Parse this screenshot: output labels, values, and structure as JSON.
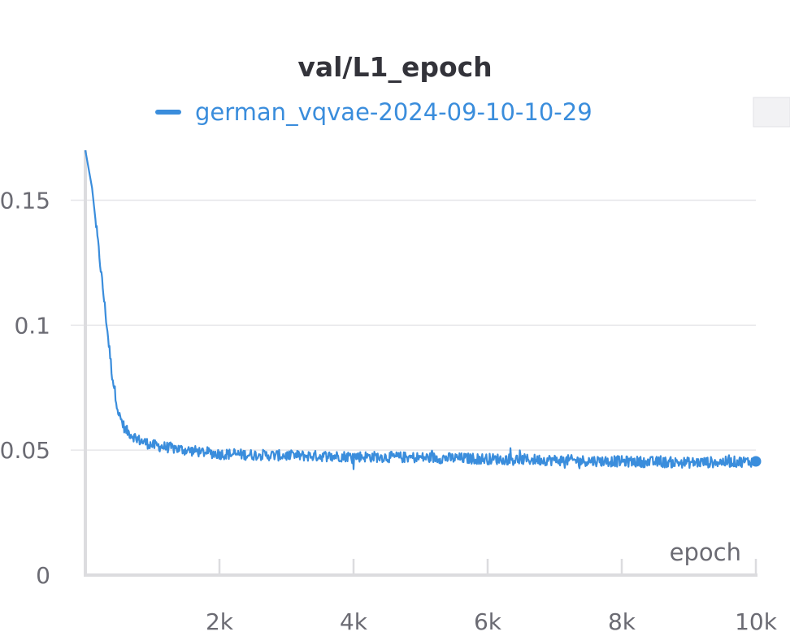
{
  "chart_data": {
    "type": "line",
    "title": "val/L1_epoch",
    "xlabel": "epoch",
    "ylabel": "",
    "xlim": [
      0,
      10000
    ],
    "ylim": [
      0,
      0.17
    ],
    "x_ticks": [
      {
        "value": 2000,
        "label": "2k"
      },
      {
        "value": 4000,
        "label": "4k"
      },
      {
        "value": 6000,
        "label": "6k"
      },
      {
        "value": 8000,
        "label": "8k"
      },
      {
        "value": 10000,
        "label": "10k"
      }
    ],
    "y_ticks": [
      {
        "value": 0,
        "label": "0"
      },
      {
        "value": 0.05,
        "label": "0.05"
      },
      {
        "value": 0.1,
        "label": "0.1"
      },
      {
        "value": 0.15,
        "label": "0.15"
      }
    ],
    "grid": "horizontal",
    "legend_position": "top-center",
    "series": [
      {
        "name": "german_vqvae-2024-09-10-10-29",
        "color": "#3a8ddc",
        "noise_amplitude": 0.0022,
        "values": [
          [
            0,
            0.17
          ],
          [
            100,
            0.155
          ],
          [
            200,
            0.13
          ],
          [
            300,
            0.105
          ],
          [
            400,
            0.08
          ],
          [
            500,
            0.064
          ],
          [
            600,
            0.058
          ],
          [
            800,
            0.054
          ],
          [
            1000,
            0.052
          ],
          [
            1500,
            0.05
          ],
          [
            2000,
            0.0485
          ],
          [
            3000,
            0.0478
          ],
          [
            4000,
            0.0475
          ],
          [
            5000,
            0.047
          ],
          [
            6000,
            0.0465
          ],
          [
            7000,
            0.046
          ],
          [
            8000,
            0.0455
          ],
          [
            9000,
            0.045
          ],
          [
            10000,
            0.0455
          ]
        ]
      }
    ]
  }
}
